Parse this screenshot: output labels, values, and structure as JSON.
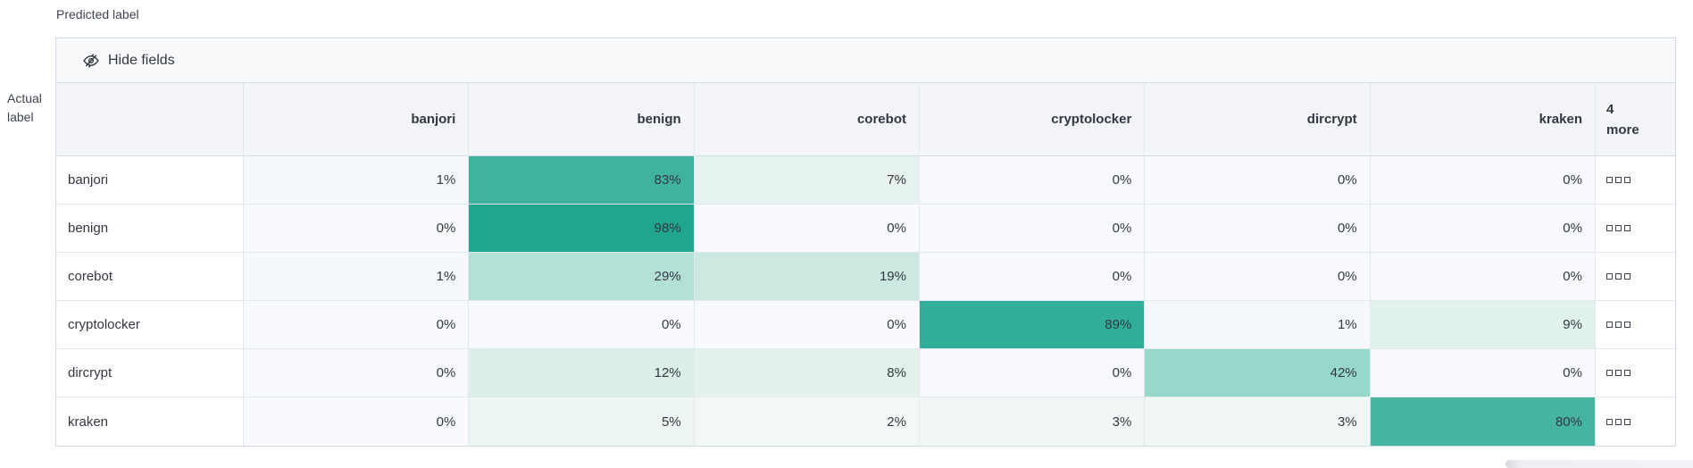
{
  "axis": {
    "predicted": "Predicted label",
    "actual": "Actual label"
  },
  "toolbar": {
    "hide_fields_label": "Hide fields",
    "hide_fields_icon": "eye-closed-icon"
  },
  "header": {
    "more_column": {
      "line1": "4",
      "line2": "more"
    },
    "row_overflow_icon": "boxes-horizontal-icon"
  },
  "colors": {
    "accent_high": "#20a68f",
    "accent_mid": "#98d8cb",
    "low_cell": "#f9fafd",
    "toolbar_bg": "#f8f9fb",
    "header_bg": "#f3f5f9",
    "outer_border": "#d3dae6",
    "inner_border": "#e3e8f0",
    "text": "#343741",
    "scrollbar": "#eef0f4"
  },
  "chart_data": {
    "type": "heatmap",
    "x_axis_label": "Predicted label",
    "y_axis_label": "Actual label",
    "x_categories": [
      "banjori",
      "benign",
      "corebot",
      "cryptolocker",
      "dircrypt",
      "kraken"
    ],
    "y_categories": [
      "banjori",
      "benign",
      "corebot",
      "cryptolocker",
      "dircrypt",
      "kraken"
    ],
    "hidden_columns_count": "4",
    "value_suffix": "%",
    "values_percent": [
      [
        1,
        83,
        7,
        0,
        0,
        0
      ],
      [
        0,
        98,
        0,
        0,
        0,
        0
      ],
      [
        1,
        29,
        19,
        0,
        0,
        0
      ],
      [
        0,
        0,
        0,
        89,
        1,
        9
      ],
      [
        0,
        12,
        8,
        0,
        42,
        0
      ],
      [
        0,
        5,
        2,
        3,
        3,
        80
      ]
    ],
    "cell_colors": [
      [
        "#f6f9fb",
        "#40b3a0",
        "#e6f3ee",
        "#f9fafd",
        "#f9fafd",
        "#f9fafd"
      ],
      [
        "#f9fafd",
        "#20a68f",
        "#f9fafd",
        "#f9fafd",
        "#f9fafd",
        "#f9fafd"
      ],
      [
        "#f6f9fb",
        "#b4e1d7",
        "#cbe9e0",
        "#f9fafd",
        "#f9fafd",
        "#f9fafd"
      ],
      [
        "#f9fafd",
        "#f9fafd",
        "#f9fafd",
        "#30ae9a",
        "#f6f9fb",
        "#e1f1eb"
      ],
      [
        "#f9fafd",
        "#dbefe8",
        "#e4f2ec",
        "#f9fafd",
        "#98d8cb",
        "#f9fafd"
      ],
      [
        "#f9fafd",
        "#ebf5f1",
        "#f2f8f6",
        "#f0f7f4",
        "#f0f7f4",
        "#45b5a2"
      ]
    ],
    "color_scale": {
      "low": "#f9fafd",
      "high": "#20a68f"
    },
    "legend": "none",
    "grid": true
  }
}
